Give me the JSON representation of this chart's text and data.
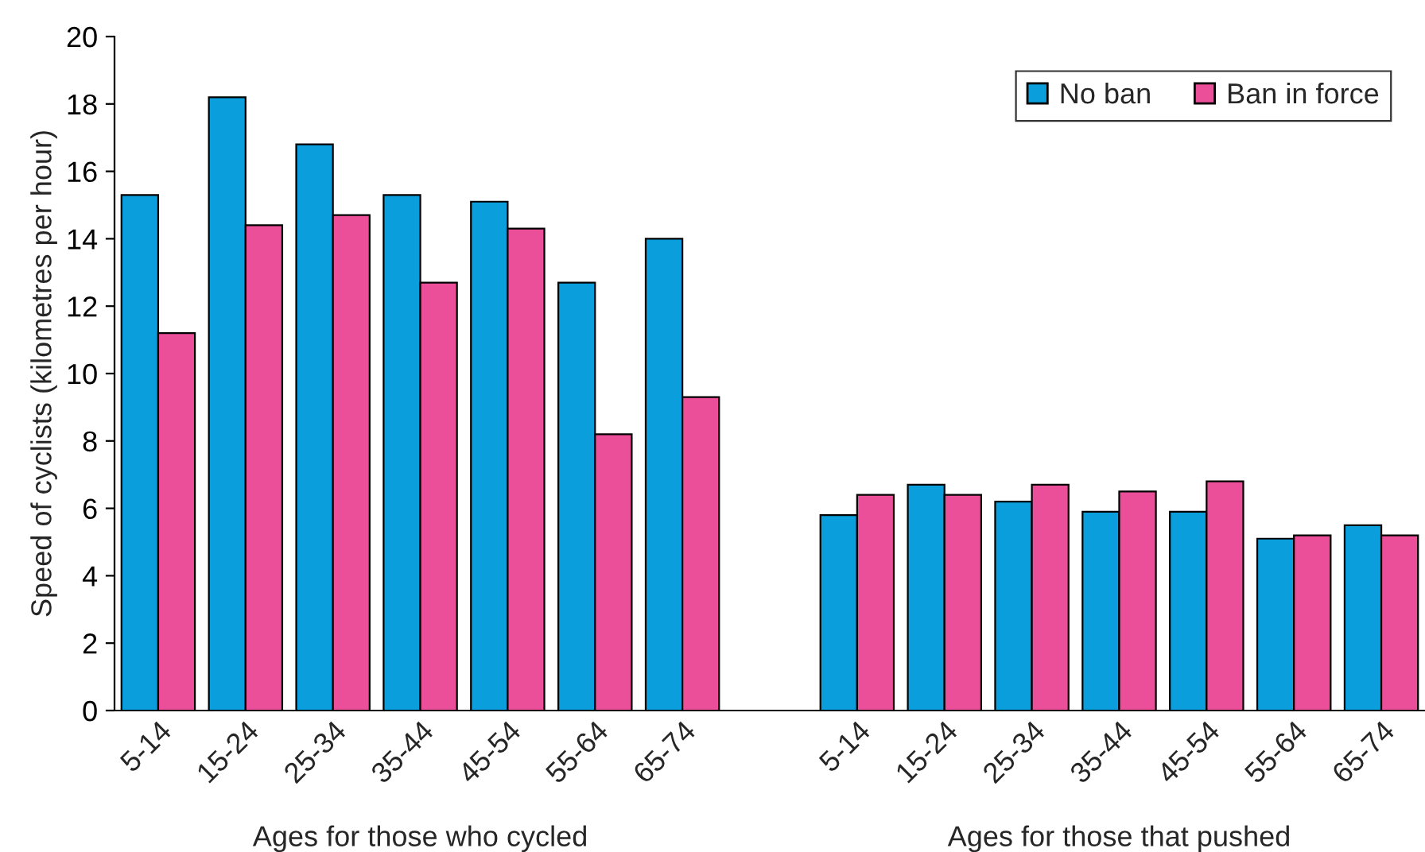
{
  "chart_data": {
    "type": "bar",
    "categories": [
      "5-14",
      "15-24",
      "25-34",
      "35-44",
      "45-54",
      "55-64",
      "65-74",
      null,
      "5-14",
      "15-24",
      "25-34",
      "35-44",
      "45-54",
      "55-64",
      "65-74"
    ],
    "series": [
      {
        "name": "No ban",
        "color": "#0a9fdc",
        "values": [
          15.3,
          18.2,
          16.8,
          15.3,
          15.1,
          12.7,
          14.0,
          null,
          5.8,
          6.7,
          6.2,
          5.9,
          5.9,
          5.1,
          5.5
        ]
      },
      {
        "name": "Ban in force",
        "color": "#ec4f9a",
        "values": [
          11.2,
          14.4,
          14.7,
          12.7,
          14.3,
          8.2,
          9.3,
          null,
          6.4,
          6.4,
          6.7,
          6.5,
          6.8,
          5.2,
          5.2
        ]
      }
    ],
    "ylabel": "Speed of cyclists (kilometres per hour)",
    "ylim": [
      0,
      20
    ],
    "yticks": [
      0,
      2,
      4,
      6,
      8,
      10,
      12,
      14,
      16,
      18,
      20
    ],
    "annotations": [
      "Ages for those who cycled",
      "Ages for those that pushed"
    ],
    "legend": "top right",
    "grid": false
  }
}
